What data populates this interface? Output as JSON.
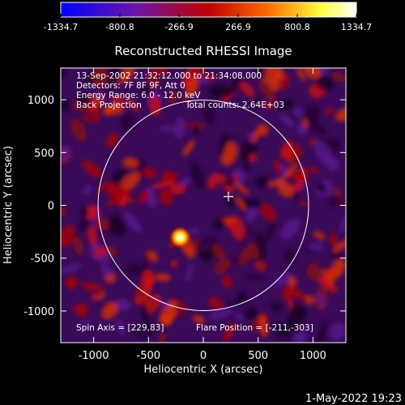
{
  "chart_data": {
    "type": "heatmap",
    "title": "Reconstructed RHESSI Image",
    "xlabel": "Heliocentric X (arcsec)",
    "ylabel": "Heliocentric Y (arcsec)",
    "xlim": [
      -1300,
      1300
    ],
    "ylim": [
      -1300,
      1300
    ],
    "x_ticks": [
      -1000,
      -500,
      0,
      500,
      1000
    ],
    "y_ticks": [
      -1000,
      -500,
      0,
      500,
      1000
    ],
    "x_tick_labels": [
      "-1000",
      "-500",
      "0",
      "500",
      "1000"
    ],
    "y_tick_labels": [
      "-1000",
      "-500",
      "0",
      "500",
      "1000"
    ],
    "colorbar": {
      "min": -1334.7,
      "max": 1334.7,
      "tick_labels": [
        "-1334.7",
        "-800.8",
        "-266.9",
        "266.9",
        "800.8",
        "1334.7"
      ],
      "colormap_stops": [
        "#0000ff",
        "#6b16a8",
        "#c00000",
        "#ff6a00",
        "#ffff40",
        "#ffffff"
      ]
    },
    "solar_limb": {
      "center_x": 0,
      "center_y": 0,
      "radius_arcsec": 960
    },
    "flare_position": {
      "x": -211,
      "y": -303,
      "peak_value": 1334.7
    },
    "spin_axis_marker": {
      "x": 229,
      "y": 83
    },
    "annotations": [
      "13-Sep-2002 21:32:12.000 to 21:34:08.000",
      "Detectors: 7F 8F 9F, Att 0",
      "Energy Range: 6.0 - 12.0 keV",
      "Back Projection",
      "Total counts: 2.64E+03",
      "Spin Axis = [229,83]",
      "Flare Position = [-211,-303]"
    ]
  },
  "footer": {
    "date": "1-May-2022 19:23"
  }
}
